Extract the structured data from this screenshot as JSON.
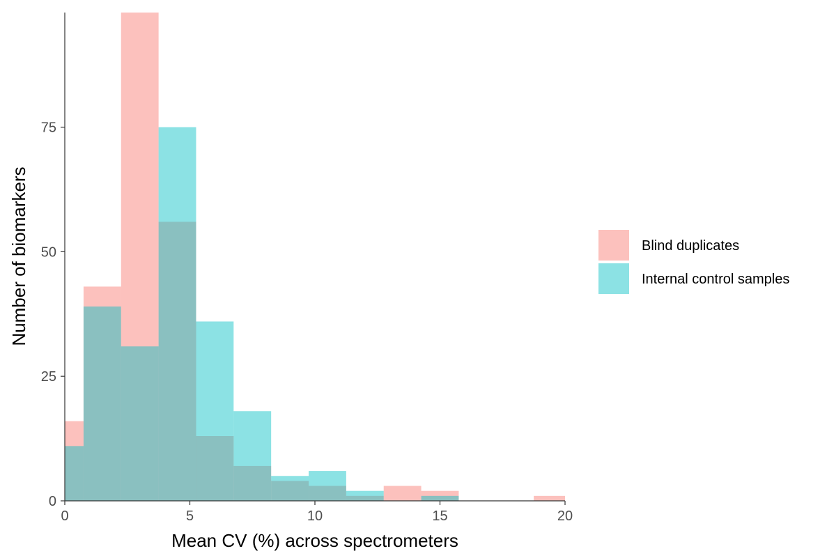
{
  "chart_data": {
    "type": "histogram",
    "xlabel": "Mean CV (%) across spectrometers",
    "ylabel": "Number of biomarkers",
    "xlim": [
      0,
      20
    ],
    "ylim": [
      0,
      98
    ],
    "x_ticks": [
      0,
      5,
      10,
      15,
      20
    ],
    "y_ticks": [
      0,
      25,
      50,
      75
    ],
    "grid": false,
    "legend_position": "right",
    "bin_edges": [
      0,
      0.75,
      2.25,
      3.75,
      5.25,
      6.75,
      8.25,
      9.75,
      11.25,
      12.75,
      14.25,
      15.75,
      17.25,
      18.75,
      20
    ],
    "series": [
      {
        "name": "Blind duplicates",
        "color": "#F8766D",
        "values": [
          16,
          43,
          98,
          56,
          13,
          7,
          4,
          3,
          1,
          3,
          2,
          0,
          0,
          1
        ]
      },
      {
        "name": "Internal control samples",
        "color": "#00BFC4",
        "values": [
          11,
          39,
          31,
          75,
          36,
          18,
          5,
          6,
          2,
          0,
          1,
          0,
          0,
          0
        ]
      }
    ]
  }
}
